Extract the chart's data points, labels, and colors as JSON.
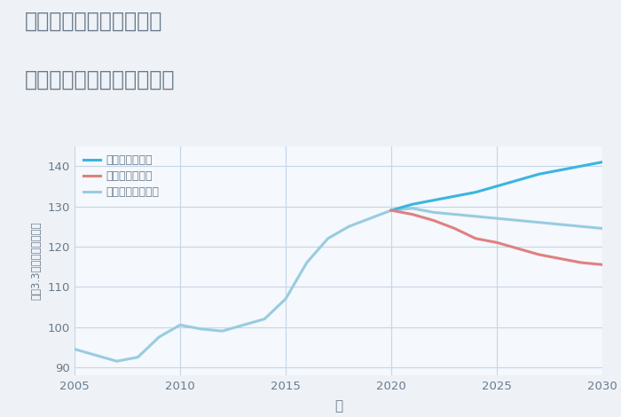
{
  "title_line1": "兵庫県姫路市威徳寺町の",
  "title_line2": "中古マンションの価格推移",
  "xlabel": "年",
  "ylabel": "坪（3.3㎡）単価（万円）",
  "xlim": [
    2005,
    2030
  ],
  "ylim": [
    88,
    145
  ],
  "yticks": [
    90,
    100,
    110,
    120,
    130,
    140
  ],
  "xticks": [
    2005,
    2010,
    2015,
    2020,
    2025,
    2030
  ],
  "background_color": "#eef2f7",
  "plot_bg_color": "#f5f8fc",
  "grid_color": "#c5d5e8",
  "legend_labels": [
    "グッドシナリオ",
    "バッドシナリオ",
    "ノーマルシナリオ"
  ],
  "color_good": "#3ab5e0",
  "color_bad": "#e08080",
  "color_normal": "#98cce0",
  "normal_x": [
    2005,
    2006,
    2007,
    2008,
    2009,
    2010,
    2011,
    2012,
    2013,
    2014,
    2015,
    2016,
    2017,
    2018,
    2019,
    2020,
    2021,
    2022,
    2023,
    2024,
    2025,
    2026,
    2027,
    2028,
    2029,
    2030
  ],
  "normal_y": [
    94.5,
    93.0,
    91.5,
    92.5,
    97.5,
    100.5,
    99.5,
    99.0,
    100.5,
    102.0,
    107.0,
    116.0,
    122.0,
    125.0,
    127.0,
    129.0,
    129.5,
    128.5,
    128.0,
    127.5,
    127.0,
    126.5,
    126.0,
    125.5,
    125.0,
    124.5
  ],
  "good_x": [
    2020,
    2021,
    2022,
    2023,
    2024,
    2025,
    2026,
    2027,
    2028,
    2029,
    2030
  ],
  "good_y": [
    129.0,
    130.5,
    131.5,
    132.5,
    133.5,
    135.0,
    136.5,
    138.0,
    139.0,
    140.0,
    141.0
  ],
  "bad_x": [
    2020,
    2021,
    2022,
    2023,
    2024,
    2025,
    2026,
    2027,
    2028,
    2029,
    2030
  ],
  "bad_y": [
    129.0,
    128.0,
    126.5,
    124.5,
    122.0,
    121.0,
    119.5,
    118.0,
    117.0,
    116.0,
    115.5
  ],
  "title_color": "#6a7a8a",
  "tick_color": "#6a7a8a",
  "label_color": "#6a7a8a"
}
